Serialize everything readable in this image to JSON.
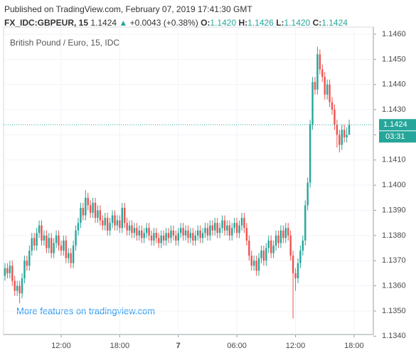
{
  "header": {
    "published": "Published on TradingView.com, February 07, 2019 17:41:30 GMT",
    "symbol": "FX_IDC:GBPEUR, 15",
    "price": "1.1424",
    "arrow": "▲",
    "change": "+0.0043 (+0.38%)",
    "ohlc": [
      {
        "label": "O:",
        "value": "1.1420"
      },
      {
        "label": "H:",
        "value": "1.1426"
      },
      {
        "label": "L:",
        "value": "1.1420"
      },
      {
        "label": "C:",
        "value": "1.1424"
      }
    ]
  },
  "chart_data": {
    "type": "candlestick",
    "title": "British Pound / Euro, 15, IDC",
    "watermark": "More features on tradingview.com",
    "countdown": "03:31",
    "last_price": 1.1424,
    "colors": {
      "up": "#26a69a",
      "down": "#ef5350"
    },
    "grid": true,
    "ylim": [
      1.1341,
      1.1463
    ],
    "yticks": [
      {
        "value": 1.134,
        "label": "1.1340"
      },
      {
        "value": 1.135,
        "label": "1.1350"
      },
      {
        "value": 1.136,
        "label": "1.1360"
      },
      {
        "value": 1.137,
        "label": "1.1370"
      },
      {
        "value": 1.138,
        "label": "1.1380"
      },
      {
        "value": 1.139,
        "label": "1.1390"
      },
      {
        "value": 1.14,
        "label": "1.1400"
      },
      {
        "value": 1.141,
        "label": "1.1410"
      },
      {
        "value": 1.142,
        "label": "1.1420"
      },
      {
        "value": 1.143,
        "label": "1.1430"
      },
      {
        "value": 1.144,
        "label": "1.1440"
      },
      {
        "value": 1.145,
        "label": "1.1450"
      },
      {
        "value": 1.146,
        "label": "1.1460"
      }
    ],
    "categories": [
      null,
      null,
      null,
      null,
      null,
      null,
      null,
      null,
      null,
      null,
      null,
      null,
      null,
      null,
      null,
      null,
      null,
      null,
      null,
      null,
      null,
      null,
      null,
      "12:00",
      null,
      null,
      null,
      null,
      null,
      null,
      null,
      null,
      null,
      null,
      null,
      null,
      null,
      null,
      null,
      null,
      null,
      null,
      null,
      null,
      null,
      null,
      null,
      "18:00",
      null,
      null,
      null,
      null,
      null,
      null,
      null,
      null,
      null,
      null,
      null,
      null,
      null,
      null,
      null,
      null,
      null,
      null,
      null,
      null,
      null,
      null,
      null,
      "7",
      null,
      null,
      null,
      null,
      null,
      null,
      null,
      null,
      null,
      null,
      null,
      null,
      null,
      null,
      null,
      null,
      null,
      null,
      null,
      null,
      null,
      null,
      null,
      "06:00",
      null,
      null,
      null,
      null,
      null,
      null,
      null,
      null,
      null,
      null,
      null,
      null,
      null,
      null,
      null,
      null,
      null,
      null,
      null,
      null,
      null,
      null,
      null,
      "12:00",
      null,
      null,
      null,
      null,
      null,
      null,
      null,
      null,
      null,
      null,
      null,
      null,
      null,
      null,
      null,
      null,
      null,
      null,
      null,
      null,
      null,
      null,
      null,
      "18:00"
    ],
    "open": [
      1.1364,
      1.1367,
      1.1365,
      1.1368,
      1.1362,
      1.1358,
      1.136,
      1.1357,
      1.1363,
      1.137,
      1.1368,
      1.1374,
      1.1379,
      1.1376,
      1.1381,
      1.1384,
      1.1378,
      1.138,
      1.1375,
      1.1379,
      1.1373,
      1.1377,
      1.138,
      1.1376,
      1.1374,
      1.1378,
      1.1371,
      1.1373,
      1.1369,
      1.1376,
      1.1382,
      1.1385,
      1.1391,
      1.1388,
      1.1395,
      1.1392,
      1.1389,
      1.1393,
      1.1387,
      1.139,
      1.1386,
      1.1384,
      1.1387,
      1.1382,
      1.1385,
      1.1388,
      1.1384,
      1.1386,
      1.1383,
      1.1391,
      1.1385,
      1.1382,
      1.1384,
      1.1381,
      1.1383,
      1.138,
      1.1382,
      1.1379,
      1.1381,
      1.1383,
      1.138,
      1.1378,
      1.1381,
      1.1379,
      1.1377,
      1.138,
      1.1378,
      1.1381,
      1.1379,
      1.1382,
      1.138,
      1.1378,
      1.1381,
      1.1383,
      1.138,
      1.1382,
      1.1379,
      1.1381,
      1.1378,
      1.138,
      1.1382,
      1.1379,
      1.1381,
      1.1383,
      1.138,
      1.1384,
      1.1382,
      1.1385,
      1.1381,
      1.1383,
      1.1386,
      1.1382,
      1.1384,
      1.138,
      1.1383,
      1.1385,
      1.1381,
      1.1384,
      1.1387,
      1.1383,
      1.1378,
      1.1372,
      1.1368,
      1.137,
      1.1366,
      1.1371,
      1.1374,
      1.137,
      1.1375,
      1.1378,
      1.1373,
      1.1376,
      1.138,
      1.1377,
      1.1382,
      1.1379,
      1.1383,
      1.138,
      1.1372,
      1.1365,
      1.1363,
      1.1369,
      1.1374,
      1.1378,
      1.1392,
      1.1401,
      1.1424,
      1.1441,
      1.1438,
      1.1452,
      1.1446,
      1.1443,
      1.1436,
      1.144,
      1.1433,
      1.143,
      1.1424,
      1.142,
      1.1416,
      1.1422,
      1.1419,
      1.142,
      null,
      null
    ],
    "high": [
      1.1369,
      1.1369,
      1.137,
      1.137,
      1.1364,
      1.1362,
      1.1362,
      1.1365,
      1.1372,
      1.1372,
      1.1376,
      1.1381,
      1.1381,
      1.1383,
      1.1386,
      1.1386,
      1.1382,
      1.1382,
      1.1381,
      1.1381,
      1.1379,
      1.1382,
      1.1382,
      1.1378,
      1.138,
      1.138,
      1.1375,
      1.1375,
      1.1378,
      1.1384,
      1.1387,
      1.1393,
      1.1393,
      1.1398,
      1.1397,
      1.1394,
      1.1395,
      1.1395,
      1.1392,
      1.1392,
      1.1388,
      1.1389,
      1.1389,
      1.1387,
      1.139,
      1.139,
      1.1388,
      1.1388,
      1.1393,
      1.1393,
      1.1387,
      1.1386,
      1.1386,
      1.1385,
      1.1385,
      1.1384,
      1.1384,
      1.1383,
      1.1385,
      1.1385,
      1.1382,
      1.1383,
      1.1383,
      1.1381,
      1.1382,
      1.1382,
      1.1383,
      1.1383,
      1.1384,
      1.1384,
      1.1382,
      1.1383,
      1.1385,
      1.1385,
      1.1384,
      1.1384,
      1.1383,
      1.1383,
      1.1382,
      1.1384,
      1.1384,
      1.1383,
      1.1385,
      1.1385,
      1.1386,
      1.1386,
      1.1387,
      1.1387,
      1.1385,
      1.1388,
      1.1388,
      1.1386,
      1.1386,
      1.1385,
      1.1387,
      1.1387,
      1.1386,
      1.1389,
      1.1389,
      1.1385,
      1.138,
      1.1374,
      1.1372,
      1.1372,
      1.1373,
      1.1376,
      1.1376,
      1.1377,
      1.138,
      1.138,
      1.1378,
      1.1382,
      1.1382,
      1.1384,
      1.1384,
      1.1385,
      1.1385,
      1.1382,
      1.1374,
      1.1367,
      1.1371,
      1.1376,
      1.138,
      1.1394,
      1.1403,
      1.1426,
      1.1443,
      1.1443,
      1.1455,
      1.1454,
      1.1448,
      1.1445,
      1.1442,
      1.1442,
      1.1435,
      1.1432,
      1.1426,
      1.1422,
      1.1424,
      1.1424,
      1.1423,
      1.1426,
      null,
      null
    ],
    "low": [
      1.1362,
      1.1363,
      1.1363,
      1.136,
      1.1356,
      1.1356,
      1.1353,
      1.1355,
      1.1361,
      1.1366,
      1.1366,
      1.1372,
      1.1374,
      1.1374,
      1.1379,
      1.1376,
      1.1376,
      1.1373,
      1.1373,
      1.1371,
      1.1371,
      1.1375,
      1.1374,
      1.1372,
      1.1372,
      1.1369,
      1.1369,
      1.1367,
      1.1367,
      1.1374,
      1.138,
      1.1383,
      1.1386,
      1.1386,
      1.139,
      1.1387,
      1.1387,
      1.1385,
      1.1385,
      1.1384,
      1.1382,
      1.1382,
      1.138,
      1.138,
      1.1383,
      1.1382,
      1.1382,
      1.1381,
      1.1381,
      1.1383,
      1.138,
      1.138,
      1.1379,
      1.1379,
      1.1378,
      1.1378,
      1.1377,
      1.1377,
      1.1379,
      1.1378,
      1.1376,
      1.1376,
      1.1377,
      1.1375,
      1.1375,
      1.1376,
      1.1376,
      1.1377,
      1.1377,
      1.1378,
      1.1376,
      1.1376,
      1.1379,
      1.1378,
      1.1378,
      1.1377,
      1.1377,
      1.1376,
      1.1376,
      1.1378,
      1.1377,
      1.1377,
      1.1379,
      1.1378,
      1.1378,
      1.138,
      1.138,
      1.1379,
      1.1379,
      1.1381,
      1.138,
      1.138,
      1.1378,
      1.1378,
      1.1381,
      1.1379,
      1.1379,
      1.1382,
      1.1381,
      1.1376,
      1.137,
      1.1366,
      1.1366,
      1.1364,
      1.1364,
      1.1369,
      1.1368,
      1.1368,
      1.1373,
      1.1371,
      1.1371,
      1.1374,
      1.1375,
      1.1375,
      1.1377,
      1.1377,
      1.1378,
      1.137,
      1.1347,
      1.1358,
      1.1361,
      1.1367,
      1.1372,
      1.1376,
      1.139,
      1.1399,
      1.1422,
      1.1436,
      1.1436,
      1.1444,
      1.1441,
      1.1434,
      1.1434,
      1.1431,
      1.1428,
      1.1422,
      1.1415,
      1.1413,
      1.1414,
      1.1417,
      1.1417,
      1.142,
      null,
      null
    ],
    "close": [
      1.1367,
      1.1365,
      1.1368,
      1.1362,
      1.1358,
      1.136,
      1.1357,
      1.1363,
      1.137,
      1.1368,
      1.1374,
      1.1379,
      1.1376,
      1.1381,
      1.1384,
      1.1378,
      1.138,
      1.1375,
      1.1379,
      1.1373,
      1.1377,
      1.138,
      1.1376,
      1.1374,
      1.1378,
      1.1371,
      1.1373,
      1.1369,
      1.1376,
      1.1382,
      1.1385,
      1.1391,
      1.1388,
      1.1395,
      1.1392,
      1.1389,
      1.1393,
      1.1387,
      1.139,
      1.1386,
      1.1384,
      1.1387,
      1.1382,
      1.1385,
      1.1388,
      1.1384,
      1.1386,
      1.1383,
      1.1391,
      1.1385,
      1.1382,
      1.1384,
      1.1381,
      1.1383,
      1.138,
      1.1382,
      1.1379,
      1.1381,
      1.1383,
      1.138,
      1.1378,
      1.1381,
      1.1379,
      1.1377,
      1.138,
      1.1378,
      1.1381,
      1.1379,
      1.1382,
      1.138,
      1.1378,
      1.1381,
      1.1383,
      1.138,
      1.1382,
      1.1379,
      1.1381,
      1.1378,
      1.138,
      1.1382,
      1.1379,
      1.1381,
      1.1383,
      1.138,
      1.1384,
      1.1382,
      1.1385,
      1.1381,
      1.1383,
      1.1386,
      1.1382,
      1.1384,
      1.138,
      1.1383,
      1.1385,
      1.1381,
      1.1384,
      1.1387,
      1.1383,
      1.1378,
      1.1372,
      1.1368,
      1.137,
      1.1366,
      1.1371,
      1.1374,
      1.137,
      1.1375,
      1.1378,
      1.1373,
      1.1376,
      1.138,
      1.1377,
      1.1382,
      1.1379,
      1.1383,
      1.138,
      1.1372,
      1.1365,
      1.1363,
      1.1369,
      1.1374,
      1.1378,
      1.1392,
      1.1401,
      1.1424,
      1.1441,
      1.1438,
      1.1452,
      1.1446,
      1.1443,
      1.1436,
      1.144,
      1.1433,
      1.143,
      1.1424,
      1.142,
      1.1416,
      1.1422,
      1.1419,
      1.142,
      1.1424,
      null,
      null
    ]
  }
}
